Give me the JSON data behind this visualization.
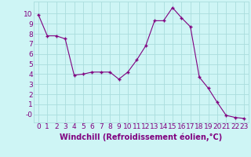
{
  "x": [
    0,
    1,
    2,
    3,
    4,
    5,
    6,
    7,
    8,
    9,
    10,
    11,
    12,
    13,
    14,
    15,
    16,
    17,
    18,
    19,
    20,
    21,
    22,
    23
  ],
  "y": [
    9.9,
    7.8,
    7.8,
    7.5,
    3.9,
    4.0,
    4.2,
    4.2,
    4.2,
    3.5,
    4.2,
    5.4,
    6.8,
    9.3,
    9.3,
    10.6,
    9.6,
    8.7,
    3.7,
    2.6,
    1.2,
    -0.1,
    -0.3,
    -0.4
  ],
  "line_color": "#800080",
  "marker": "+",
  "bg_color": "#cef5f5",
  "grid_color": "#aadddd",
  "xlabel": "Windchill (Refroidissement éolien,°C)",
  "xlabel_color": "#800080",
  "tick_color": "#800080",
  "ytick_labels": [
    "10",
    "9",
    "8",
    "7",
    "6",
    "5",
    "4",
    "3",
    "2",
    "1",
    "-0"
  ],
  "ytick_values": [
    10,
    9,
    8,
    7,
    6,
    5,
    4,
    3,
    2,
    1,
    0
  ],
  "ylim": [
    -0.8,
    11.2
  ],
  "xlim": [
    -0.5,
    23.5
  ],
  "font_size": 6.5
}
